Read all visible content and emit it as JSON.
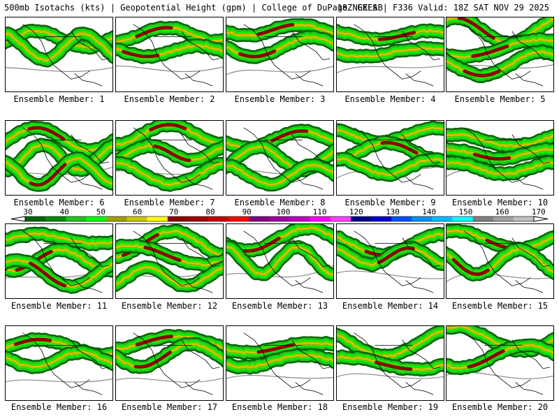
{
  "header": {
    "left": "500mb Isotachs (kts) | Geopotential Height (gpm) | College of DuPage NEXLAB",
    "right": "18Z GEFS | F336 Valid: 18Z SAT NOV 29 2025"
  },
  "colorbar": {
    "labels": [
      "30",
      "40",
      "50",
      "60",
      "70",
      "80",
      "90",
      "100",
      "110",
      "120",
      "130",
      "140",
      "150",
      "160",
      "170"
    ],
    "colors": [
      "#006400",
      "#008c00",
      "#22c41d",
      "#00ff00",
      "#a0a000",
      "#c8c800",
      "#ffff00",
      "#8b0000",
      "#a00000",
      "#c80000",
      "#ff0000",
      "#800080",
      "#a000a0",
      "#c000c0",
      "#ff00ff",
      "#ff40ff",
      "#00008b",
      "#0000cd",
      "#0050ff",
      "#0090ff",
      "#00c0ff",
      "#00ffff",
      "#808080",
      "#a0a0a0",
      "#c0c0c0"
    ]
  },
  "members": [
    {
      "label": "Ensemble Member: 1"
    },
    {
      "label": "Ensemble Member: 2"
    },
    {
      "label": "Ensemble Member: 3"
    },
    {
      "label": "Ensemble Member: 4"
    },
    {
      "label": "Ensemble Member: 5"
    },
    {
      "label": "Ensemble Member: 6"
    },
    {
      "label": "Ensemble Member: 7"
    },
    {
      "label": "Ensemble Member: 8"
    },
    {
      "label": "Ensemble Member: 9"
    },
    {
      "label": "Ensemble Member: 10"
    },
    {
      "label": "Ensemble Member: 11"
    },
    {
      "label": "Ensemble Member: 12"
    },
    {
      "label": "Ensemble Member: 13"
    },
    {
      "label": "Ensemble Member: 14"
    },
    {
      "label": "Ensemble Member: 15"
    },
    {
      "label": "Ensemble Member: 16"
    },
    {
      "label": "Ensemble Member: 17"
    },
    {
      "label": "Ensemble Member: 18"
    },
    {
      "label": "Ensemble Member: 19"
    },
    {
      "label": "Ensemble Member: 20"
    }
  ]
}
